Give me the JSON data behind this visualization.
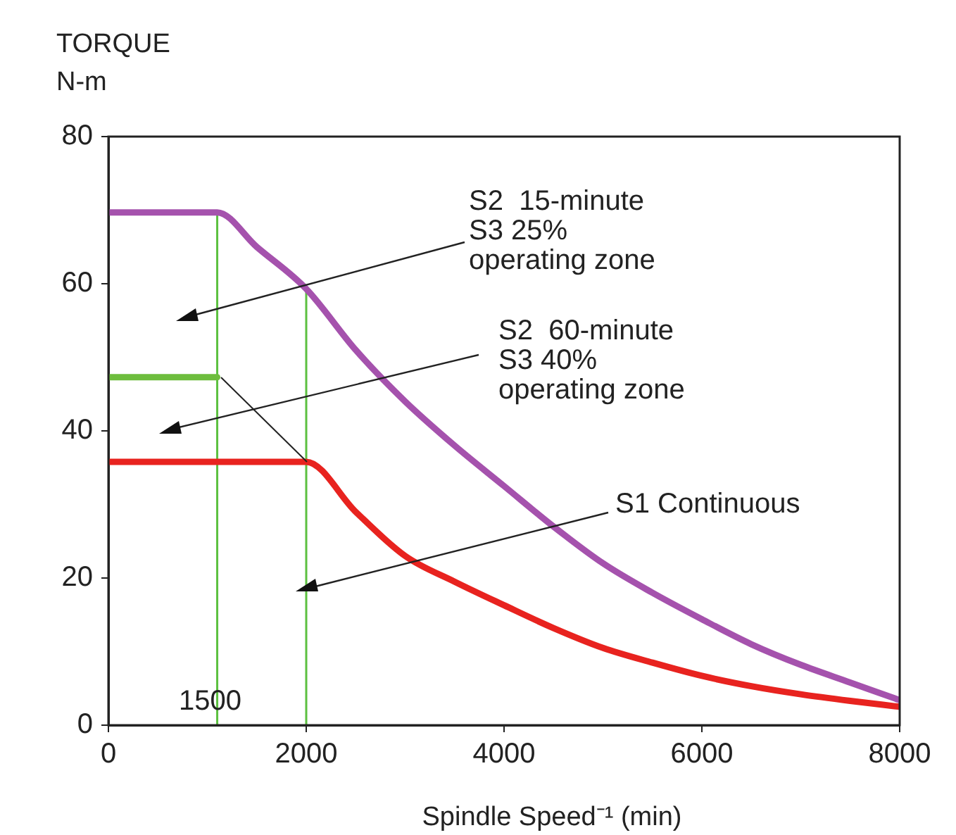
{
  "chart_data": {
    "type": "line",
    "xlabel": "Spindle Speed⁻¹ (min)",
    "ylabel": "TORQUE\nN-m",
    "xlim": [
      0,
      8000
    ],
    "ylim": [
      0,
      80
    ],
    "xticks": [
      0,
      2000,
      4000,
      6000,
      8000
    ],
    "yticks": [
      0,
      20,
      40,
      60,
      80
    ],
    "legend": false,
    "marker": "none",
    "series": [
      {
        "color": "#a552ad",
        "x": [
          0,
          1100,
          1500,
          2000,
          2500,
          3000,
          3500,
          4000,
          4500,
          5000,
          5500,
          6000,
          6500,
          7000,
          7500,
          8000
        ],
        "values": [
          69.7,
          69.7,
          65,
          59.3,
          51,
          44,
          38,
          32.5,
          27,
          22,
          18,
          14.4,
          11,
          8.2,
          5.8,
          3.4
        ]
      },
      {
        "color": "#6dbd3d",
        "x": [
          0,
          1100
        ],
        "values": [
          47.3,
          47.3
        ]
      },
      {
        "color": "#e8231f",
        "x": [
          0,
          2000,
          2500,
          3000,
          3500,
          4000,
          4500,
          5000,
          5500,
          6000,
          6500,
          7000,
          7500,
          8000
        ],
        "values": [
          35.8,
          35.8,
          29,
          23,
          19.5,
          16.3,
          13.2,
          10.5,
          8.5,
          6.7,
          5.3,
          4.2,
          3.3,
          2.5
        ]
      }
    ],
    "ref_lines": [
      {
        "axis": "x",
        "value": 1100,
        "color": "#5cc040"
      },
      {
        "axis": "x",
        "value": 2000,
        "color": "#5cc040"
      }
    ],
    "annotations": [
      "S2  15-minute\nS3 25%\noperating zone",
      "S2  60-minute\nS3 40%\noperating zone",
      "S1 Continuous",
      "1500"
    ]
  }
}
